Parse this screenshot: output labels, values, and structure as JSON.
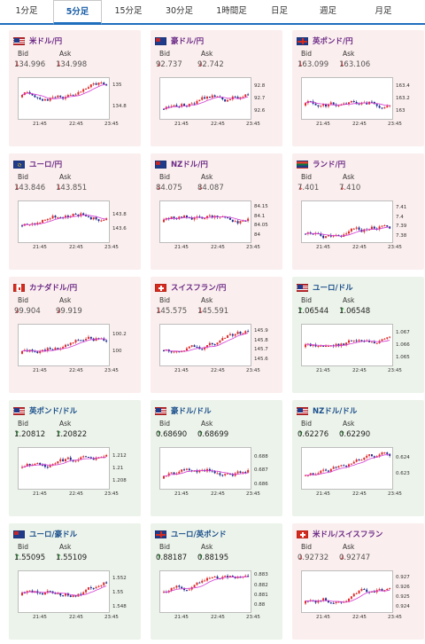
{
  "tabs": [
    "1分足",
    "5分足",
    "15分足",
    "30分足",
    "1時間足",
    "日足",
    "週足",
    "月足"
  ],
  "active_tab": "5分足",
  "bid_label": "Bid",
  "ask_label": "Ask",
  "colors": {
    "down_bg": "#fbeeee",
    "up_bg": "#ecf3ea",
    "candle_up": "#e02b2b",
    "candle_down": "#1c2a8c",
    "ma": "#d33bd3",
    "accent": "#1f6fbf"
  },
  "cards": [
    {
      "pair": "米ドル/円",
      "flag": "us-flag",
      "dir": "down",
      "bid": "134.996",
      "ask": "134.998",
      "bid_dir": "down",
      "ask_dir": "down",
      "chart_data": {
        "type": "candlestick",
        "x_ticks": [
          "21:45",
          "22:45",
          "23:45"
        ],
        "y_ticks": [
          "135",
          "134.8"
        ],
        "ylim": [
          134.7,
          135.05
        ]
      }
    },
    {
      "pair": "豪ドル/円",
      "flag": "au-flag",
      "dir": "down",
      "bid": "92.737",
      "ask": "92.742",
      "bid_dir": "down",
      "ask_dir": "down",
      "chart_data": {
        "type": "candlestick",
        "x_ticks": [
          "21:45",
          "22:45",
          "23:45"
        ],
        "y_ticks": [
          "92.8",
          "92.7",
          "92.6"
        ],
        "ylim": [
          92.55,
          92.85
        ]
      }
    },
    {
      "pair": "英ポンド/円",
      "flag": "uk-flag",
      "dir": "down",
      "bid": "163.099",
      "ask": "163.106",
      "bid_dir": "down",
      "ask_dir": "down",
      "chart_data": {
        "type": "candlestick",
        "x_ticks": [
          "21:45",
          "22:45",
          "23:45"
        ],
        "y_ticks": [
          "163.4",
          "163.2",
          "163"
        ],
        "ylim": [
          162.9,
          163.5
        ]
      }
    },
    {
      "pair": "ユーロ/円",
      "flag": "eu-flag",
      "dir": "down",
      "bid": "143.846",
      "ask": "143.851",
      "bid_dir": "down",
      "ask_dir": "down",
      "chart_data": {
        "type": "candlestick",
        "x_ticks": [
          "21:45",
          "22:45",
          "23:45"
        ],
        "y_ticks": [
          "143.8",
          "143.6"
        ],
        "ylim": [
          143.45,
          143.95
        ]
      }
    },
    {
      "pair": "NZドル/円",
      "flag": "nz-flag",
      "dir": "down",
      "bid": "84.075",
      "ask": "84.087",
      "bid_dir": "down",
      "ask_dir": "down",
      "chart_data": {
        "type": "candlestick",
        "x_ticks": [
          "21:45",
          "22:45",
          "23:45"
        ],
        "y_ticks": [
          "84.15",
          "84.1",
          "84.05",
          "84"
        ],
        "ylim": [
          83.97,
          84.17
        ]
      }
    },
    {
      "pair": "ランド/円",
      "flag": "za-flag",
      "dir": "down",
      "bid": "7.401",
      "ask": "7.410",
      "bid_dir": "down",
      "ask_dir": "down",
      "chart_data": {
        "type": "candlestick",
        "x_ticks": [
          "21:45",
          "22:45",
          "23:45"
        ],
        "y_ticks": [
          "7.41",
          "7.4",
          "7.39",
          "7.38"
        ],
        "ylim": [
          7.375,
          7.415
        ]
      }
    },
    {
      "pair": "カナダドル/円",
      "flag": "ca-flag",
      "dir": "down",
      "bid": "99.904",
      "ask": "99.919",
      "bid_dir": "down",
      "ask_dir": "down",
      "chart_data": {
        "type": "candlestick",
        "x_ticks": [
          "21:45",
          "22:45",
          "23:45"
        ],
        "y_ticks": [
          "100.2",
          "100"
        ],
        "ylim": [
          99.85,
          100.3
        ]
      }
    },
    {
      "pair": "スイスフラン/円",
      "flag": "ch-flag",
      "dir": "down",
      "bid": "145.575",
      "ask": "145.591",
      "bid_dir": "down",
      "ask_dir": "down",
      "chart_data": {
        "type": "candlestick",
        "x_ticks": [
          "21:45",
          "22:45",
          "23:45"
        ],
        "y_ticks": [
          "145.9",
          "145.8",
          "145.7",
          "145.6"
        ],
        "ylim": [
          145.55,
          145.95
        ]
      }
    },
    {
      "pair": "ユーロ/ドル",
      "flag": "eu-us-flag",
      "dir": "up",
      "bid": "1.06544",
      "ask": "1.06548",
      "bid_dir": "up",
      "ask_dir": "up",
      "chart_data": {
        "type": "candlestick",
        "x_ticks": [
          "21:45",
          "22:45",
          "23:45"
        ],
        "y_ticks": [
          "1.067",
          "1.066",
          "1.065"
        ],
        "ylim": [
          1.0645,
          1.0675
        ]
      }
    },
    {
      "pair": "英ポンド/ドル",
      "flag": "uk-us-flag",
      "dir": "up",
      "bid": "1.20812",
      "ask": "1.20822",
      "bid_dir": "up",
      "ask_dir": "up",
      "chart_data": {
        "type": "candlestick",
        "x_ticks": [
          "21:45",
          "22:45",
          "23:45"
        ],
        "y_ticks": [
          "1.212",
          "1.21",
          "1.208"
        ],
        "ylim": [
          1.207,
          1.213
        ]
      }
    },
    {
      "pair": "豪ドル/ドル",
      "flag": "au-us-flag",
      "dir": "up",
      "bid": "0.68690",
      "ask": "0.68699",
      "bid_dir": "up",
      "ask_dir": "up",
      "chart_data": {
        "type": "candlestick",
        "x_ticks": [
          "21:45",
          "22:45",
          "23:45"
        ],
        "y_ticks": [
          "0.688",
          "0.687",
          "0.686"
        ],
        "ylim": [
          0.6858,
          0.6885
        ]
      }
    },
    {
      "pair": "NZドル/ドル",
      "flag": "nz-us-flag",
      "dir": "up",
      "bid": "0.62276",
      "ask": "0.62290",
      "bid_dir": "up",
      "ask_dir": "up",
      "chart_data": {
        "type": "candlestick",
        "x_ticks": [
          "21:45",
          "22:45",
          "23:45"
        ],
        "y_ticks": [
          "0.624",
          "0.623"
        ],
        "ylim": [
          0.6222,
          0.6245
        ]
      }
    },
    {
      "pair": "ユーロ/豪ドル",
      "flag": "eu-au-flag",
      "dir": "up",
      "bid": "1.55095",
      "ask": "1.55109",
      "bid_dir": "up",
      "ask_dir": "up",
      "chart_data": {
        "type": "candlestick",
        "x_ticks": [
          "21:45",
          "22:45",
          "23:45"
        ],
        "y_ticks": [
          "1.552",
          "1.55",
          "1.548"
        ],
        "ylim": [
          1.5475,
          1.5528
        ]
      }
    },
    {
      "pair": "ユーロ/英ポンド",
      "flag": "eu-uk-flag",
      "dir": "up",
      "bid": "0.88187",
      "ask": "0.88195",
      "bid_dir": "up",
      "ask_dir": "up",
      "chart_data": {
        "type": "candlestick",
        "x_ticks": [
          "21:45",
          "22:45",
          "23:45"
        ],
        "y_ticks": [
          "0.883",
          "0.882",
          "0.881",
          "0.88"
        ],
        "ylim": [
          0.8795,
          0.8832
        ]
      }
    },
    {
      "pair": "米ドル/スイスフラン",
      "flag": "us-ch-flag",
      "dir": "down",
      "bid": "0.92732",
      "ask": "0.92747",
      "bid_dir": "down",
      "ask_dir": "down",
      "chart_data": {
        "type": "candlestick",
        "x_ticks": [
          "21:45",
          "22:45",
          "23:45"
        ],
        "y_ticks": [
          "0.927",
          "0.926",
          "0.925",
          "0.924"
        ],
        "ylim": [
          0.9236,
          0.9275
        ]
      }
    }
  ]
}
